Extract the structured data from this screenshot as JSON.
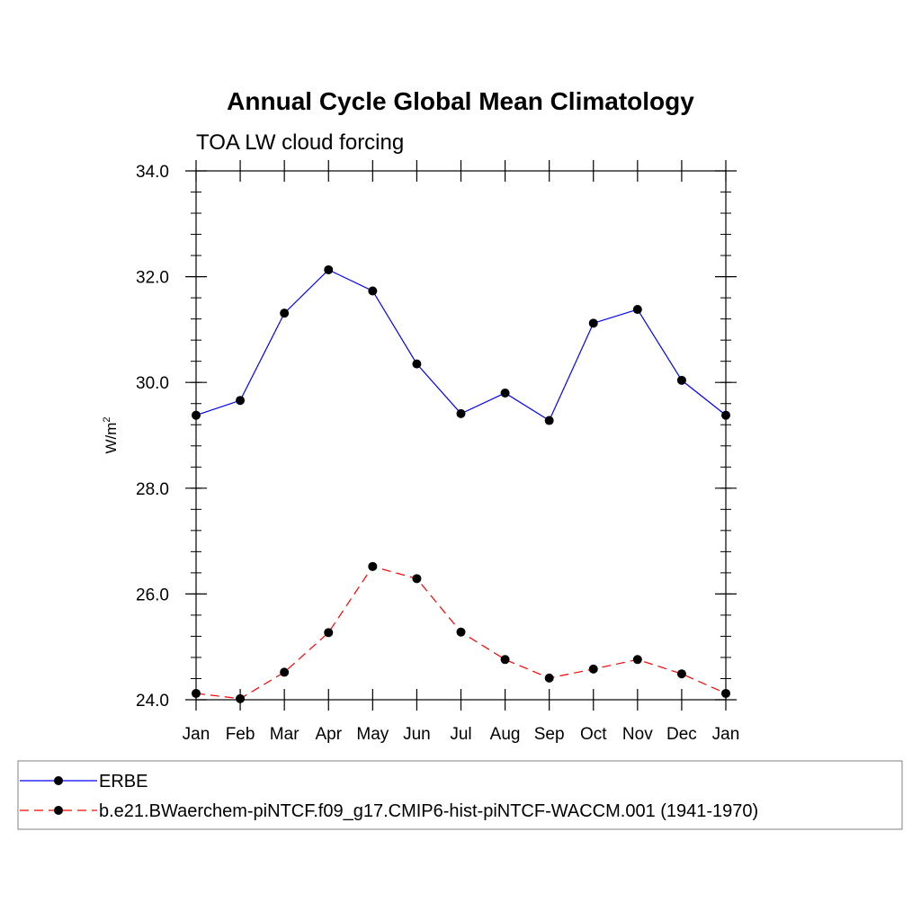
{
  "chart_data": {
    "type": "line",
    "title": "Annual Cycle Global Mean Climatology",
    "subtitle": "TOA LW cloud forcing",
    "ylabel_base": "W/m",
    "ylabel_sup": "2",
    "xlabel": "",
    "categories": [
      "Jan",
      "Feb",
      "Mar",
      "Apr",
      "May",
      "Jun",
      "Jul",
      "Aug",
      "Sep",
      "Oct",
      "Nov",
      "Dec",
      "Jan"
    ],
    "ylim": [
      24.0,
      34.0
    ],
    "yticks": [
      "24.0",
      "26.0",
      "28.0",
      "30.0",
      "32.0",
      "34.0"
    ],
    "grid": false,
    "legend_position": "bottom",
    "series": [
      {
        "name": "ERBE",
        "color": "#0000ff",
        "dash": "solid",
        "values": [
          29.38,
          29.66,
          31.31,
          32.13,
          31.73,
          30.35,
          29.41,
          29.8,
          29.28,
          31.12,
          31.38,
          30.04,
          29.38
        ]
      },
      {
        "name": "b.e21.BWaerchem-piNTCF.f09_g17.CMIP6-hist-piNTCF-WACCM.001 (1941-1970)",
        "color": "#ff0000",
        "dash": "dashed",
        "values": [
          24.12,
          24.02,
          24.52,
          25.27,
          26.52,
          26.29,
          25.28,
          24.76,
          24.41,
          24.58,
          24.76,
          24.49,
          24.12
        ]
      }
    ]
  }
}
